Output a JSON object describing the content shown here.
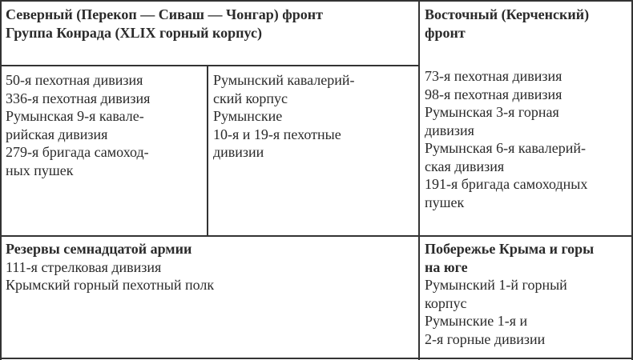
{
  "table": {
    "north_header": [
      "Северный (Перекоп — Сиваш — Чонгар) фронт",
      "Группа Конрада (XLIX горный корпус)"
    ],
    "north_col1": [
      "50-я пехотная дивизия",
      "336-я пехотная дивизия",
      "Румынская 9-я кавале-",
      "рийская дивизия",
      "279-я бригада самоход-",
      "ных пушек"
    ],
    "north_col2": [
      "Румынский кавалерий-",
      "ский корпус",
      "Румынские",
      "10-я и 19-я пехотные",
      "дивизии"
    ],
    "east_header": [
      "Восточный (Керченский)",
      "фронт"
    ],
    "east_list": [
      "73-я пехотная дивизия",
      "98-я пехотная дивизия",
      "Румынская 3-я горная",
      "дивизия",
      "Румынская 6-я кавалерий-",
      "ская дивизия",
      "191-я бригада самоходных",
      "пушек"
    ],
    "reserves_header": "Резервы семнадцатой армии",
    "reserves_list": [
      "111-я стрелковая дивизия",
      "Крымский горный пехотный полк"
    ],
    "coast_header": [
      "Побережье Крыма и горы",
      "на юге"
    ],
    "coast_list": [
      "Румынский 1-й горный",
      "корпус",
      "Румынские 1-я и",
      "2-я горные дивизии"
    ]
  }
}
